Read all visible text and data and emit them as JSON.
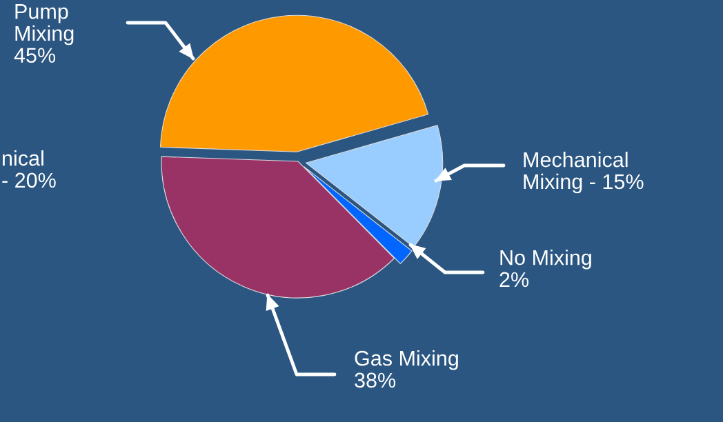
{
  "chart_data": {
    "type": "pie",
    "categories": [
      "Pump\nMixing",
      "Mechanical\nMixing -",
      "No Mixing",
      "Gas Mixing"
    ],
    "values": [
      45,
      15,
      2,
      38
    ],
    "value_labels": [
      "45%",
      "15%",
      "2%",
      "38%"
    ],
    "colors": [
      "#ff9900",
      "#99ccff",
      "#0066ff",
      "#993366"
    ],
    "annotations": [
      "nical\n- 20%"
    ],
    "legend": false
  }
}
